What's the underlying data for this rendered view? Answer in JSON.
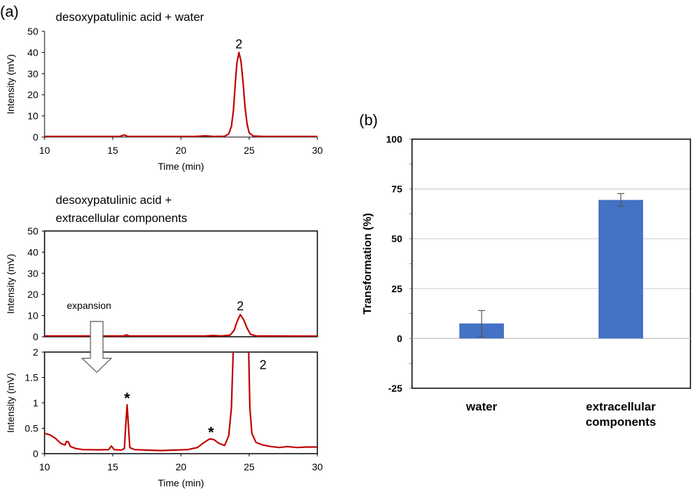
{
  "panel_labels": {
    "a": "(a)",
    "b": "(b)"
  },
  "expansion_label": "expansion",
  "chart_data": [
    {
      "type": "line",
      "title": "desoxypatulinic acid + water",
      "xlabel": "Time (min)",
      "ylabel": "Intensity (mV)",
      "xlim": [
        10,
        30
      ],
      "ylim": [
        0,
        50
      ],
      "xticks": [
        10,
        15,
        20,
        25,
        30
      ],
      "yticks": [
        0,
        10,
        20,
        30,
        40,
        50
      ],
      "series": [
        {
          "color": "#c00000",
          "points": [
            [
              10,
              0.3
            ],
            [
              15.5,
              0.3
            ],
            [
              15.85,
              1.0
            ],
            [
              16.1,
              0.3
            ],
            [
              21,
              0.3
            ],
            [
              21.8,
              0.6
            ],
            [
              22.4,
              0.3
            ],
            [
              23.2,
              0.4
            ],
            [
              23.5,
              1.5
            ],
            [
              23.7,
              5
            ],
            [
              23.85,
              13
            ],
            [
              24.0,
              27
            ],
            [
              24.1,
              35
            ],
            [
              24.25,
              40
            ],
            [
              24.4,
              36
            ],
            [
              24.55,
              26
            ],
            [
              24.7,
              14
            ],
            [
              24.85,
              6
            ],
            [
              25.0,
              2
            ],
            [
              25.3,
              0.5
            ],
            [
              26,
              0.3
            ],
            [
              30,
              0.3
            ]
          ]
        }
      ],
      "annotations": [
        {
          "text": "2",
          "x": 24.25,
          "y": 40
        }
      ]
    },
    {
      "type": "line",
      "title": [
        "desoxypatulinic acid +",
        "extracellular components"
      ],
      "xlabel": "",
      "ylabel": "Intensity (mV)",
      "xlim": [
        10,
        30
      ],
      "ylim": [
        0,
        50
      ],
      "xticks": [],
      "yticks": [
        0,
        10,
        20,
        30,
        40,
        50
      ],
      "series": [
        {
          "color": "#c00000",
          "points": [
            [
              10,
              0.4
            ],
            [
              15.8,
              0.4
            ],
            [
              16.0,
              0.9
            ],
            [
              16.2,
              0.4
            ],
            [
              21.8,
              0.4
            ],
            [
              22.3,
              0.6
            ],
            [
              23,
              0.4
            ],
            [
              23.6,
              0.8
            ],
            [
              23.9,
              3
            ],
            [
              24.1,
              7
            ],
            [
              24.35,
              10.5
            ],
            [
              24.6,
              8
            ],
            [
              24.85,
              4
            ],
            [
              25.1,
              1.2
            ],
            [
              25.5,
              0.4
            ],
            [
              30,
              0.3
            ]
          ]
        }
      ],
      "annotations": [
        {
          "text": "2",
          "x": 24.35,
          "y": 10.5
        }
      ]
    },
    {
      "type": "line",
      "title": "",
      "xlabel": "Time (min)",
      "ylabel": "Intensity (mV)",
      "xlim": [
        10,
        30
      ],
      "ylim": [
        0,
        2
      ],
      "xticks": [
        10,
        15,
        20,
        25,
        30
      ],
      "yticks": [
        0,
        0.5,
        1,
        1.5,
        2
      ],
      "ytick_labels": [
        "0",
        "0.5",
        "1",
        "1.5",
        "2"
      ],
      "series": [
        {
          "color": "#c00000",
          "points": [
            [
              10,
              0.4
            ],
            [
              10.4,
              0.37
            ],
            [
              10.8,
              0.3
            ],
            [
              11.2,
              0.2
            ],
            [
              11.5,
              0.17
            ],
            [
              11.6,
              0.24
            ],
            [
              11.75,
              0.23
            ],
            [
              11.9,
              0.14
            ],
            [
              12.3,
              0.1
            ],
            [
              12.8,
              0.08
            ],
            [
              14,
              0.075
            ],
            [
              14.7,
              0.08
            ],
            [
              14.9,
              0.15
            ],
            [
              15.1,
              0.08
            ],
            [
              15.6,
              0.07
            ],
            [
              15.85,
              0.1
            ],
            [
              15.95,
              0.55
            ],
            [
              16.05,
              0.96
            ],
            [
              16.15,
              0.55
            ],
            [
              16.25,
              0.12
            ],
            [
              16.6,
              0.08
            ],
            [
              17.5,
              0.07
            ],
            [
              18.5,
              0.06
            ],
            [
              19.5,
              0.07
            ],
            [
              20.5,
              0.08
            ],
            [
              21.2,
              0.12
            ],
            [
              21.7,
              0.22
            ],
            [
              22.1,
              0.29
            ],
            [
              22.4,
              0.28
            ],
            [
              22.8,
              0.2
            ],
            [
              23.2,
              0.16
            ],
            [
              23.5,
              0.35
            ],
            [
              23.7,
              0.9
            ],
            [
              23.85,
              2.2
            ],
            [
              24.1,
              2.5
            ],
            [
              24.8,
              2.5
            ],
            [
              24.95,
              2.2
            ],
            [
              25.05,
              0.9
            ],
            [
              25.2,
              0.4
            ],
            [
              25.5,
              0.22
            ],
            [
              26,
              0.17
            ],
            [
              26.6,
              0.14
            ],
            [
              27.2,
              0.12
            ],
            [
              27.8,
              0.14
            ],
            [
              28.5,
              0.12
            ],
            [
              29.2,
              0.13
            ],
            [
              30,
              0.13
            ]
          ]
        }
      ],
      "annotations": [
        {
          "text": "*",
          "x": 16.05,
          "y": 0.96
        },
        {
          "text": "*",
          "x": 22.2,
          "y": 0.29
        },
        {
          "text": "2",
          "x": 25.3,
          "y": 1.75
        }
      ]
    },
    {
      "type": "bar",
      "title": "",
      "ylabel": "Transformation (%)",
      "categories": [
        [
          "water"
        ],
        [
          "extracellular",
          "components"
        ]
      ],
      "values": [
        7.5,
        69.5
      ],
      "errors": [
        6.5,
        3.2
      ],
      "ylim": [
        -25,
        100
      ],
      "yticks": [
        -25,
        0,
        25,
        50,
        75,
        100
      ],
      "grid": true,
      "bar_color": "#4472c4"
    }
  ]
}
